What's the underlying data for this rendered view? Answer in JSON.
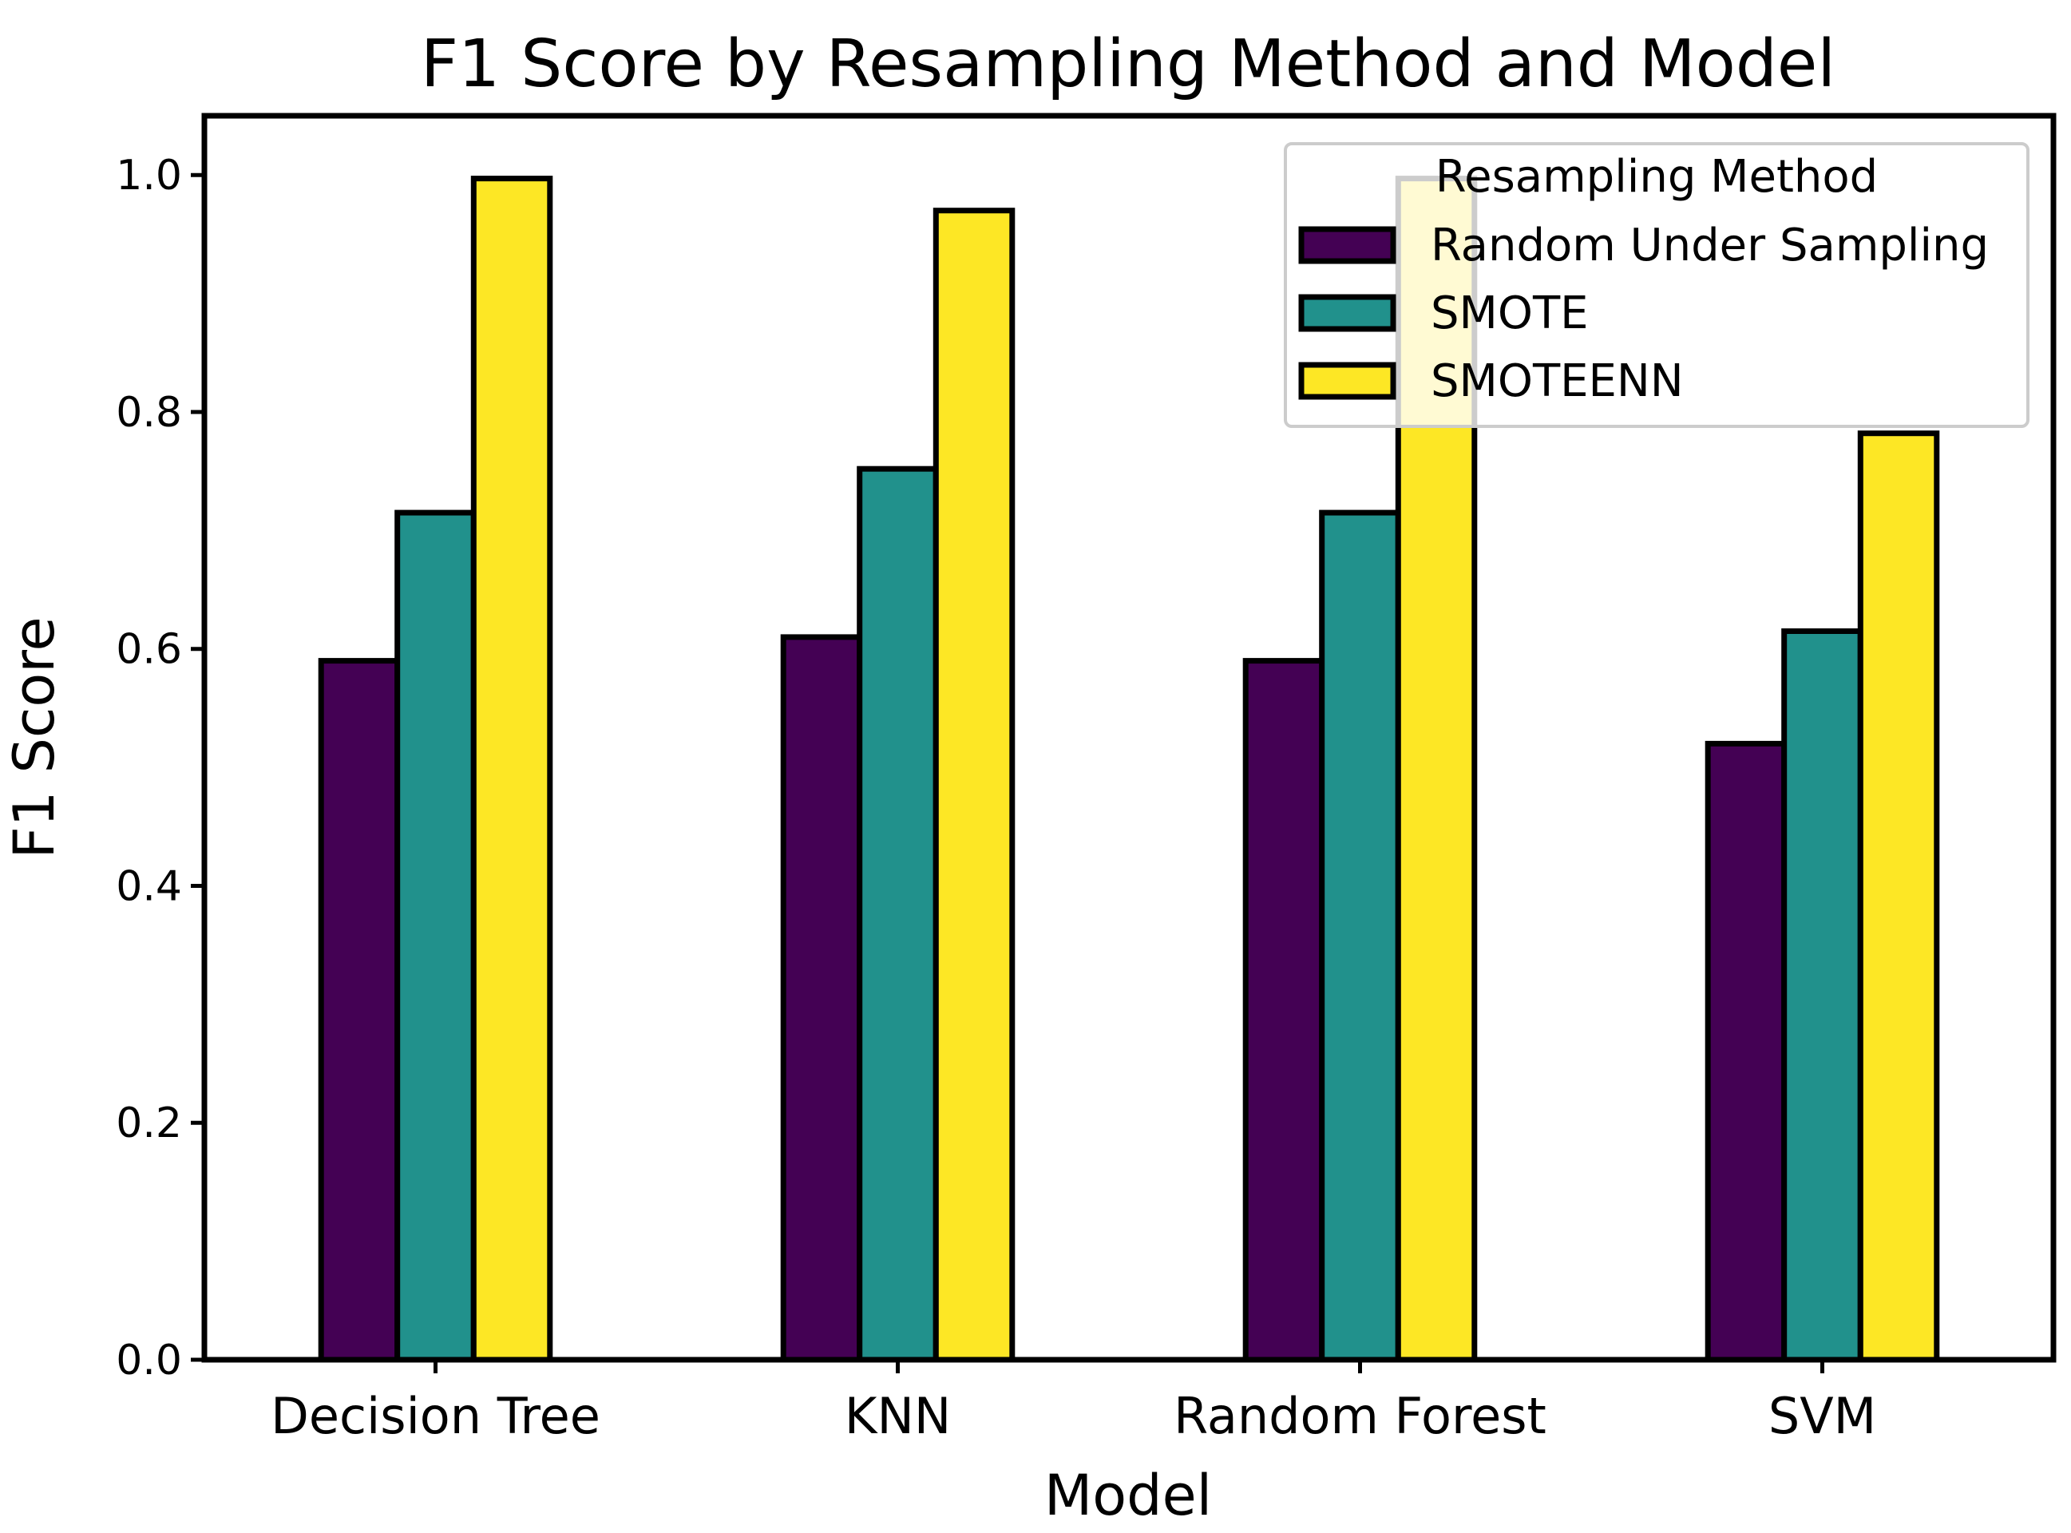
{
  "chart_data": {
    "type": "bar",
    "title": "F1 Score by Resampling Method and Model",
    "xlabel": "Model",
    "ylabel": "F1 Score",
    "ylim": [
      0,
      1.05
    ],
    "yticks": [
      0.0,
      0.2,
      0.4,
      0.6,
      0.8,
      1.0
    ],
    "ytick_labels": [
      "0.0",
      "0.2",
      "0.4",
      "0.6",
      "0.8",
      "1.0"
    ],
    "grid": false,
    "categories": [
      "Decision Tree",
      "KNN",
      "Random Forest",
      "SVM"
    ],
    "series": [
      {
        "name": "Random Under Sampling",
        "color": "#440154",
        "values": [
          0.59,
          0.61,
          0.59,
          0.52
        ]
      },
      {
        "name": "SMOTE",
        "color": "#21918c",
        "values": [
          0.715,
          0.752,
          0.715,
          0.615
        ]
      },
      {
        "name": "SMOTEENN",
        "color": "#fde725",
        "values": [
          0.997,
          0.97,
          0.997,
          0.782
        ]
      }
    ],
    "legend": {
      "title": "Resampling Method",
      "placement": "top-right"
    }
  }
}
